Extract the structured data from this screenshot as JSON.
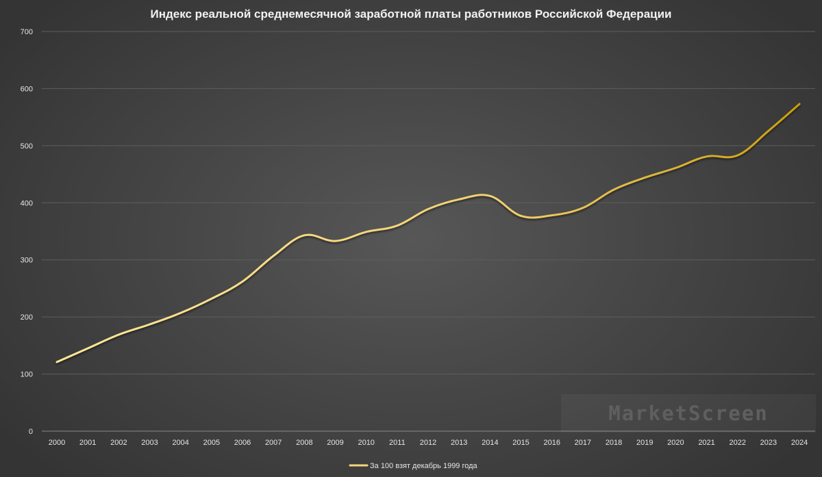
{
  "chart_data": {
    "type": "line",
    "title": "Индекс реальной среднемесячной заработной платы работников Российской Федерации",
    "xlabel": "",
    "ylabel": "",
    "ylim": [
      0,
      700
    ],
    "yticks": [
      0,
      100,
      200,
      300,
      400,
      500,
      600,
      700
    ],
    "grid": true,
    "legend_position": "bottom",
    "categories": [
      "2000",
      "2001",
      "2002",
      "2003",
      "2004",
      "2005",
      "2006",
      "2007",
      "2008",
      "2009",
      "2010",
      "2011",
      "2012",
      "2013",
      "2014",
      "2015",
      "2016",
      "2017",
      "2018",
      "2019",
      "2020",
      "2021",
      "2022",
      "2023",
      "2024"
    ],
    "series": [
      {
        "name": "За 100 взят декабрь 1999 года",
        "color_start": "#ffe79a",
        "color_end": "#cc9e0c",
        "values": [
          121,
          145,
          169,
          187,
          207,
          232,
          262,
          307,
          343,
          333,
          349,
          360,
          389,
          406,
          412,
          377,
          378,
          391,
          423,
          444,
          461,
          481,
          483,
          526,
          573
        ]
      }
    ]
  },
  "watermark": {
    "text": "MarketScreen"
  }
}
